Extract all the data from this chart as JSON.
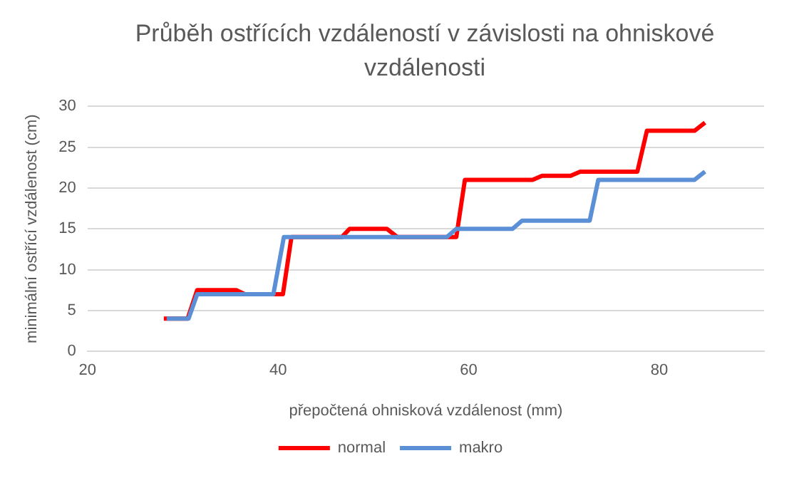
{
  "chart_data": {
    "type": "line",
    "title": "Průběh ostřících vzdáleností v závislosti na ohniskové vzdálenosti",
    "xlabel": "přepočtená ohnisková vzdálenost (mm)",
    "ylabel": "minimální ostřící vzdálenost (cm)",
    "series": [
      {
        "name": "normal",
        "color": "#ff0000",
        "x": [
          28,
          30.5,
          31.5,
          35.6,
          36.5,
          40.5,
          41.4,
          46.7,
          47.5,
          51.4,
          52.5,
          58.7,
          59.6,
          66.7,
          67.7,
          70.7,
          71.7,
          77.7,
          78.7,
          83.7,
          84.8
        ],
        "values": [
          4,
          4,
          7.5,
          7.5,
          7,
          7,
          14,
          14,
          15,
          15,
          14,
          14,
          21,
          21,
          21.5,
          21.5,
          22,
          22,
          27,
          27,
          28
        ]
      },
      {
        "name": "makro",
        "color": "#5b8fd6",
        "x": [
          28.3,
          30.6,
          31.5,
          39.5,
          40.6,
          57.7,
          58.7,
          64.6,
          65.6,
          72.7,
          73.6,
          83.7,
          84.8
        ],
        "values": [
          4,
          4,
          7,
          7,
          14,
          14,
          15,
          15,
          16,
          16,
          21,
          21,
          22
        ]
      }
    ],
    "xlim": [
      20,
      91
    ],
    "xticks": [
      20,
      40,
      60,
      80
    ],
    "ylim": [
      0,
      30
    ],
    "yticks": [
      0,
      5,
      10,
      15,
      20,
      25,
      30
    ],
    "grid": "y",
    "legend": "bottom",
    "marker": "none",
    "line_style": "solid"
  }
}
